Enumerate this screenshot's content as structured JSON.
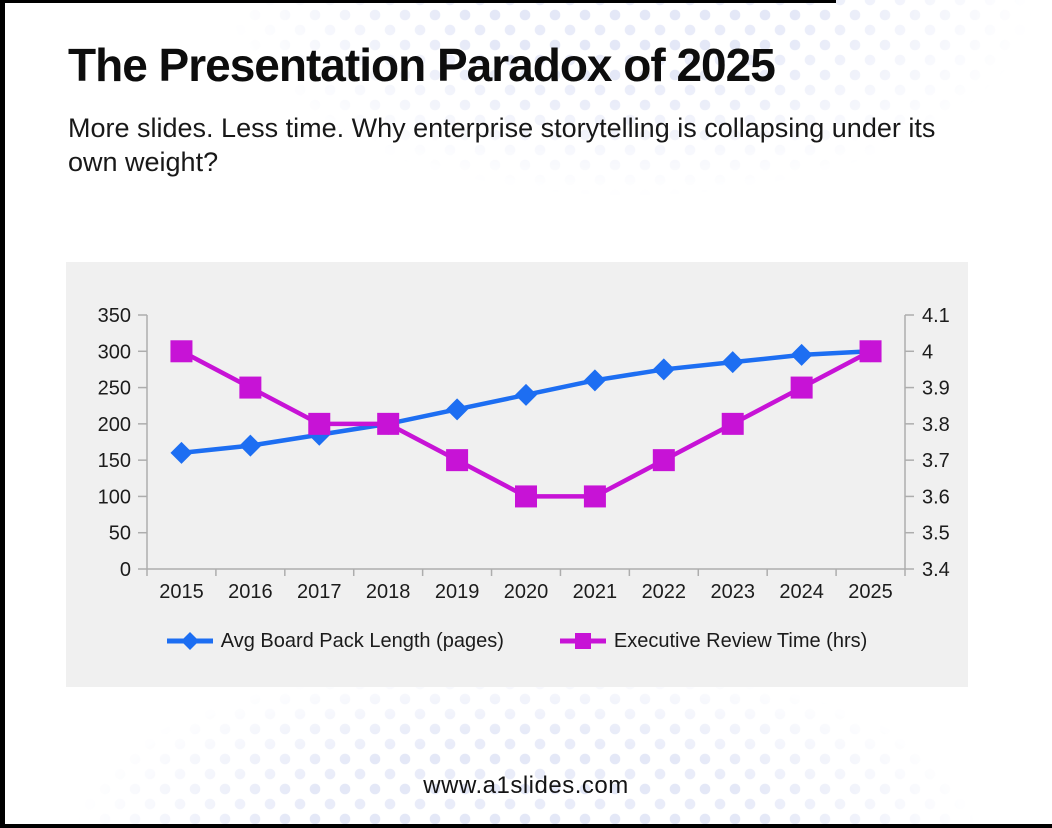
{
  "header": {
    "title": "The Presentation Paradox of 2025",
    "subtitle": "More slides. Less time. Why enterprise storytelling is collapsing under its own weight?"
  },
  "footer": {
    "url": "www.a1slides.com"
  },
  "colors": {
    "pages_blue": "#1D6EF2",
    "hours_magenta": "#C713D6",
    "panel_bg": "#F0F0F0",
    "axis_gray": "#ADADAD",
    "text_dark": "#1C1C1C",
    "dot_lavender": "#E4E8F7"
  },
  "chart_data": {
    "type": "line",
    "categories": [
      "2015",
      "2016",
      "2017",
      "2018",
      "2019",
      "2020",
      "2021",
      "2022",
      "2023",
      "2024",
      "2025"
    ],
    "series": [
      {
        "name": "Avg Board Pack Length (pages)",
        "axis": "left",
        "marker": "diamond",
        "color": "#1D6EF2",
        "values": [
          160,
          170,
          185,
          200,
          220,
          240,
          260,
          275,
          285,
          295,
          300
        ]
      },
      {
        "name": "Executive Review Time (hrs)",
        "axis": "right",
        "marker": "square",
        "color": "#C713D6",
        "values": [
          4.0,
          3.9,
          3.8,
          3.8,
          3.7,
          3.6,
          3.6,
          3.7,
          3.8,
          3.9,
          4.0
        ]
      }
    ],
    "left_axis": {
      "min": 0,
      "max": 350,
      "step": 50,
      "ticks": [
        "350",
        "300",
        "250",
        "200",
        "150",
        "100",
        "50",
        "0"
      ]
    },
    "right_axis": {
      "min": 3.4,
      "max": 4.1,
      "step": 0.1,
      "ticks": [
        "4.1",
        "4",
        "3.9",
        "3.8",
        "3.7",
        "3.6",
        "3.5",
        "3.4"
      ]
    },
    "legend_position": "bottom",
    "grid": false,
    "plot_background": "#F0F0F0"
  }
}
